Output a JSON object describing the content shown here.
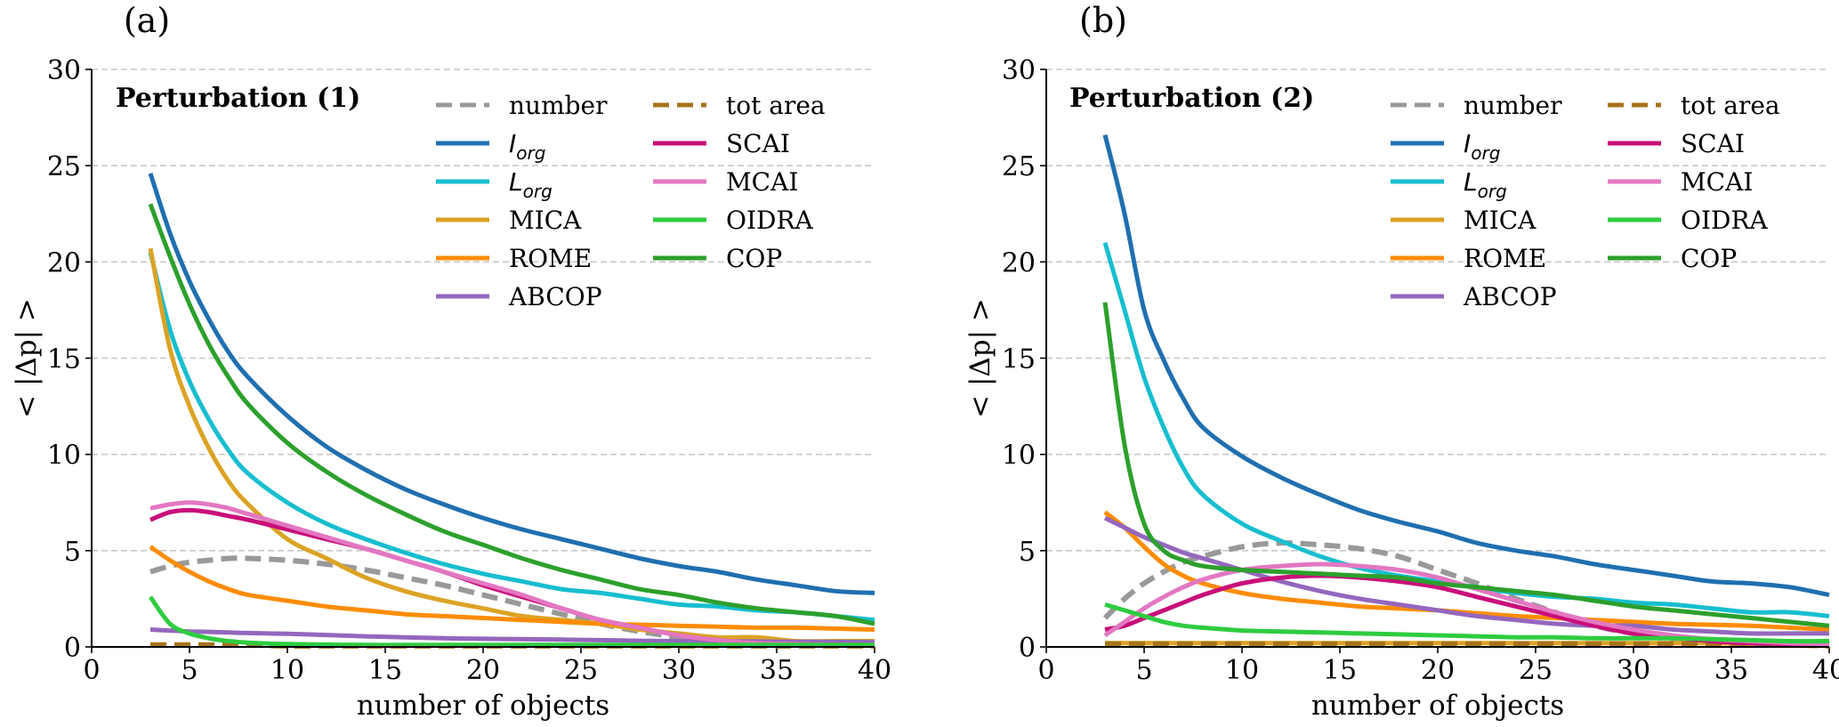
{
  "chart_data": [
    {
      "type": "line",
      "panel_label": "(a)",
      "title": "Perturbation (1)",
      "xlabel": "number of objects",
      "ylabel": "< |Δp| >",
      "xlim": [
        0,
        40
      ],
      "ylim": [
        0,
        30
      ],
      "xticks": [
        "0",
        "5",
        "10",
        "15",
        "20",
        "25",
        "30",
        "35",
        "40"
      ],
      "yticks": [
        "0",
        "5",
        "10",
        "15",
        "20",
        "25",
        "30"
      ],
      "grid": "horizontal dashed",
      "legend_placement": "top-right",
      "x": [
        3,
        4,
        5,
        6,
        7,
        8,
        10,
        12,
        14,
        16,
        18,
        20,
        22,
        24,
        26,
        28,
        30,
        32,
        34,
        36,
        38,
        40
      ],
      "series": [
        {
          "name": "number",
          "base": "",
          "sub": "",
          "color": "#999999",
          "dashed": true,
          "values": [
            3.9,
            4.2,
            4.4,
            4.5,
            4.6,
            4.6,
            4.5,
            4.3,
            4.0,
            3.6,
            3.2,
            2.7,
            2.2,
            1.7,
            1.2,
            0.8,
            0.5,
            0.3,
            0.2,
            0.1,
            0.1,
            0.1
          ]
        },
        {
          "name": "I_org",
          "base": "I",
          "sub": "org",
          "color": "#1f6fb0",
          "dashed": false,
          "values": [
            24.6,
            21.5,
            19.0,
            17.0,
            15.3,
            14.0,
            12.0,
            10.4,
            9.2,
            8.2,
            7.4,
            6.7,
            6.1,
            5.6,
            5.1,
            4.6,
            4.2,
            3.9,
            3.5,
            3.2,
            2.9,
            2.8
          ]
        },
        {
          "name": "L_org",
          "base": "L",
          "sub": "org",
          "color": "#17becf",
          "dashed": false,
          "values": [
            20.5,
            16.5,
            13.8,
            11.8,
            10.2,
            9.0,
            7.5,
            6.4,
            5.6,
            4.9,
            4.3,
            3.8,
            3.4,
            3.0,
            2.8,
            2.5,
            2.2,
            2.1,
            1.9,
            1.8,
            1.6,
            1.4
          ]
        },
        {
          "name": "MICA",
          "base": "MICA",
          "sub": "",
          "color": "#dba325",
          "dashed": false,
          "values": [
            20.7,
            15.5,
            12.5,
            10.3,
            8.6,
            7.4,
            5.6,
            4.6,
            3.6,
            2.9,
            2.4,
            2.0,
            1.6,
            1.4,
            1.2,
            0.9,
            0.7,
            0.5,
            0.5,
            0.3,
            0.3,
            0.3
          ]
        },
        {
          "name": "ROME",
          "base": "ROME",
          "sub": "",
          "color": "#ff8c00",
          "dashed": false,
          "values": [
            5.2,
            4.5,
            3.9,
            3.4,
            3.0,
            2.7,
            2.4,
            2.1,
            1.9,
            1.7,
            1.6,
            1.5,
            1.4,
            1.3,
            1.2,
            1.15,
            1.1,
            1.05,
            1.0,
            1.0,
            0.95,
            0.9
          ]
        },
        {
          "name": "ABCOP",
          "base": "ABCOP",
          "sub": "",
          "color": "#9467bd",
          "dashed": false,
          "values": [
            0.9,
            0.85,
            0.8,
            0.78,
            0.75,
            0.72,
            0.68,
            0.62,
            0.55,
            0.5,
            0.45,
            0.42,
            0.4,
            0.38,
            0.35,
            0.32,
            0.3,
            0.3,
            0.28,
            0.27,
            0.26,
            0.25
          ]
        },
        {
          "name": "tot area",
          "base": "tot area",
          "sub": "",
          "color": "#a6731a",
          "dashed": true,
          "values": [
            0.1,
            0.1,
            0.1,
            0.1,
            0.1,
            0.1,
            0.05,
            0.05,
            0.05,
            0.05,
            0.05,
            0.05,
            0.05,
            0.05,
            0.05,
            0.05,
            0.05,
            0.05,
            0.05,
            0.05,
            0.05,
            0.05
          ]
        },
        {
          "name": "SCAI",
          "base": "SCAI",
          "sub": "",
          "color": "#c90f7a",
          "dashed": false,
          "values": [
            6.6,
            7.0,
            7.1,
            7.0,
            6.8,
            6.6,
            6.1,
            5.6,
            5.1,
            4.5,
            3.9,
            3.2,
            2.6,
            2.0,
            1.4,
            1.0,
            0.6,
            0.35,
            0.2,
            0.15,
            0.1,
            0.1
          ]
        },
        {
          "name": "MCAI",
          "base": "MCAI",
          "sub": "",
          "color": "#e377c2",
          "dashed": false,
          "values": [
            7.2,
            7.4,
            7.5,
            7.4,
            7.2,
            6.9,
            6.3,
            5.7,
            5.1,
            4.5,
            3.9,
            3.3,
            2.7,
            2.0,
            1.4,
            1.0,
            0.6,
            0.35,
            0.2,
            0.15,
            0.1,
            0.1
          ]
        },
        {
          "name": "OIDRA",
          "base": "OIDRA",
          "sub": "",
          "color": "#2ecc40",
          "dashed": false,
          "values": [
            2.6,
            1.2,
            0.7,
            0.45,
            0.3,
            0.22,
            0.15,
            0.12,
            0.1,
            0.1,
            0.1,
            0.1,
            0.1,
            0.1,
            0.1,
            0.1,
            0.1,
            0.1,
            0.1,
            0.1,
            0.1,
            0.1
          ]
        },
        {
          "name": "COP",
          "base": "COP",
          "sub": "",
          "color": "#2ca02c",
          "dashed": false,
          "values": [
            23.0,
            20.3,
            17.8,
            15.7,
            14.0,
            12.6,
            10.6,
            9.1,
            7.9,
            6.9,
            6.0,
            5.3,
            4.6,
            4.0,
            3.5,
            3.0,
            2.7,
            2.3,
            2.0,
            1.8,
            1.6,
            1.2
          ]
        }
      ]
    },
    {
      "type": "line",
      "panel_label": "(b)",
      "title": "Perturbation (2)",
      "xlabel": "number of objects",
      "ylabel": "< |Δp| >",
      "xlim": [
        0,
        40
      ],
      "ylim": [
        0,
        30
      ],
      "xticks": [
        "0",
        "5",
        "10",
        "15",
        "20",
        "25",
        "30",
        "35",
        "40"
      ],
      "yticks": [
        "0",
        "5",
        "10",
        "15",
        "20",
        "25",
        "30"
      ],
      "grid": "horizontal dashed",
      "legend_placement": "top-right",
      "x": [
        3,
        4,
        5,
        6,
        7,
        8,
        10,
        12,
        14,
        16,
        18,
        20,
        22,
        24,
        26,
        28,
        30,
        32,
        34,
        36,
        38,
        40
      ],
      "series": [
        {
          "name": "number",
          "base": "",
          "sub": "",
          "color": "#999999",
          "dashed": true,
          "values": [
            1.5,
            2.5,
            3.3,
            3.9,
            4.4,
            4.7,
            5.2,
            5.4,
            5.3,
            5.1,
            4.7,
            4.0,
            3.3,
            2.5,
            1.8,
            1.1,
            0.7,
            0.4,
            0.3,
            0.2,
            0.1,
            0.1
          ]
        },
        {
          "name": "I_org",
          "base": "I",
          "sub": "org",
          "color": "#1f6fb0",
          "dashed": false,
          "values": [
            26.6,
            22.5,
            17.5,
            14.9,
            12.9,
            11.4,
            9.9,
            8.8,
            7.9,
            7.1,
            6.5,
            6.0,
            5.4,
            5.0,
            4.7,
            4.3,
            4.0,
            3.7,
            3.4,
            3.3,
            3.1,
            2.7
          ]
        },
        {
          "name": "L_org",
          "base": "L",
          "sub": "org",
          "color": "#17becf",
          "dashed": false,
          "values": [
            21.0,
            17.5,
            14.0,
            11.4,
            9.3,
            7.9,
            6.4,
            5.5,
            4.7,
            4.1,
            3.7,
            3.4,
            3.1,
            2.8,
            2.6,
            2.5,
            2.3,
            2.2,
            2.0,
            1.8,
            1.8,
            1.6
          ]
        },
        {
          "name": "MICA",
          "base": "MICA",
          "sub": "",
          "color": "#dba325",
          "dashed": false,
          "values": [
            0.2,
            0.2,
            0.2,
            0.2,
            0.2,
            0.2,
            0.2,
            0.2,
            0.2,
            0.2,
            0.2,
            0.2,
            0.2,
            0.2,
            0.2,
            0.2,
            0.2,
            0.2,
            0.2,
            0.15,
            0.1,
            0.1
          ]
        },
        {
          "name": "ROME",
          "base": "ROME",
          "sub": "",
          "color": "#ff8c00",
          "dashed": false,
          "values": [
            7.0,
            6.2,
            5.2,
            4.3,
            3.7,
            3.3,
            2.8,
            2.5,
            2.3,
            2.1,
            2.0,
            1.9,
            1.75,
            1.6,
            1.5,
            1.4,
            1.3,
            1.2,
            1.15,
            1.1,
            1.0,
            0.9
          ]
        },
        {
          "name": "ABCOP",
          "base": "ABCOP",
          "sub": "",
          "color": "#9467bd",
          "dashed": false,
          "values": [
            6.7,
            6.2,
            5.7,
            5.3,
            4.9,
            4.6,
            4.0,
            3.4,
            2.9,
            2.5,
            2.2,
            1.9,
            1.6,
            1.4,
            1.2,
            1.1,
            1.1,
            0.9,
            0.8,
            0.7,
            0.7,
            0.7
          ]
        },
        {
          "name": "tot area",
          "base": "tot area",
          "sub": "",
          "color": "#a6731a",
          "dashed": true,
          "values": [
            0.15,
            0.15,
            0.15,
            0.15,
            0.15,
            0.15,
            0.15,
            0.15,
            0.15,
            0.15,
            0.15,
            0.15,
            0.15,
            0.15,
            0.15,
            0.15,
            0.15,
            0.15,
            0.15,
            0.1,
            0.1,
            0.05
          ]
        },
        {
          "name": "SCAI",
          "base": "SCAI",
          "sub": "",
          "color": "#c90f7a",
          "dashed": false,
          "values": [
            0.9,
            1.1,
            1.5,
            1.9,
            2.3,
            2.7,
            3.3,
            3.6,
            3.7,
            3.6,
            3.4,
            3.1,
            2.6,
            2.1,
            1.6,
            1.1,
            0.7,
            0.5,
            0.3,
            0.2,
            0.15,
            0.1
          ]
        },
        {
          "name": "MCAI",
          "base": "MCAI",
          "sub": "",
          "color": "#e377c2",
          "dashed": false,
          "values": [
            0.6,
            1.3,
            2.0,
            2.6,
            3.1,
            3.5,
            4.0,
            4.2,
            4.3,
            4.2,
            4.0,
            3.6,
            3.0,
            2.4,
            1.8,
            1.3,
            0.9,
            0.6,
            0.4,
            0.3,
            0.2,
            0.15
          ]
        },
        {
          "name": "OIDRA",
          "base": "OIDRA",
          "sub": "",
          "color": "#2ecc40",
          "dashed": false,
          "values": [
            2.2,
            1.9,
            1.6,
            1.3,
            1.1,
            1.0,
            0.85,
            0.8,
            0.75,
            0.7,
            0.65,
            0.6,
            0.55,
            0.5,
            0.5,
            0.45,
            0.45,
            0.45,
            0.4,
            0.35,
            0.3,
            0.3
          ]
        },
        {
          "name": "COP",
          "base": "COP",
          "sub": "",
          "color": "#2ca02c",
          "dashed": false,
          "values": [
            17.9,
            10.5,
            6.4,
            5.0,
            4.5,
            4.2,
            4.0,
            3.9,
            3.8,
            3.7,
            3.6,
            3.3,
            3.1,
            2.9,
            2.7,
            2.4,
            2.1,
            1.9,
            1.7,
            1.5,
            1.3,
            1.1
          ]
        }
      ]
    }
  ]
}
